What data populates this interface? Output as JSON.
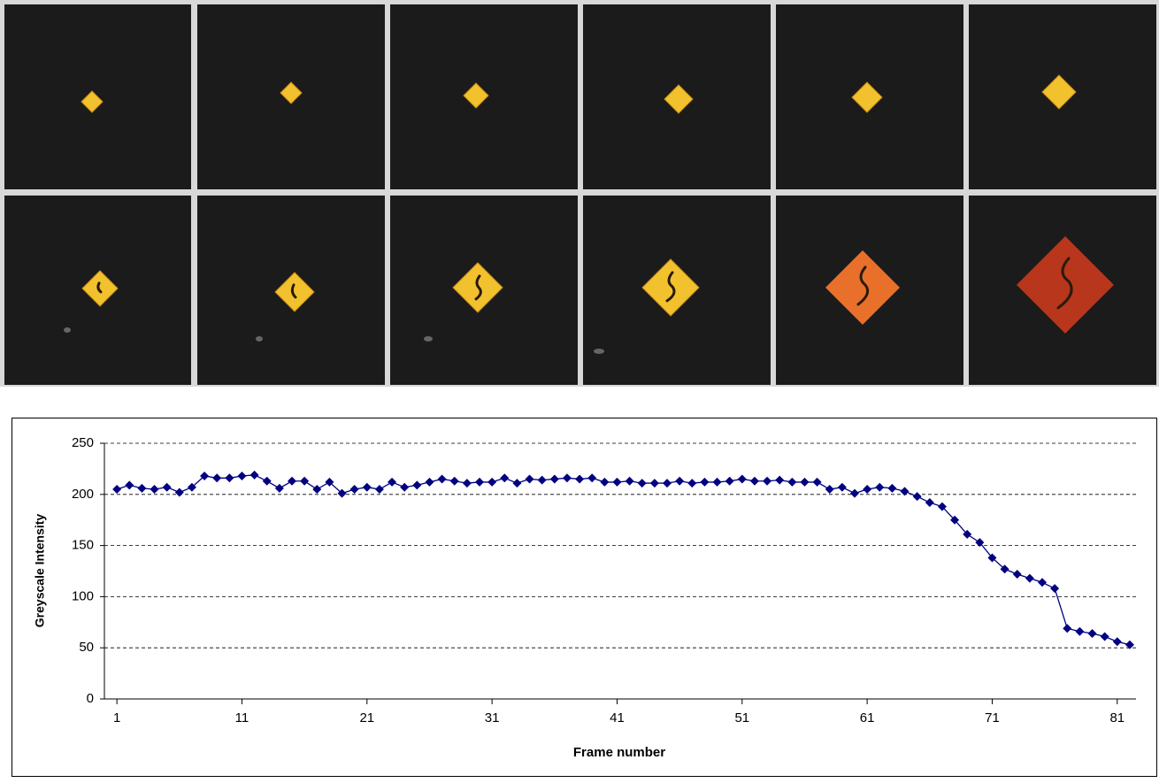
{
  "chart_data": {
    "type": "line",
    "x_label": "Frame number",
    "y_label": "Greyscale Intensity",
    "x": [
      1,
      2,
      3,
      4,
      5,
      6,
      7,
      8,
      9,
      10,
      11,
      12,
      13,
      14,
      15,
      16,
      17,
      18,
      19,
      20,
      21,
      22,
      23,
      24,
      25,
      26,
      27,
      28,
      29,
      30,
      31,
      32,
      33,
      34,
      35,
      36,
      37,
      38,
      39,
      40,
      41,
      42,
      43,
      44,
      45,
      46,
      47,
      48,
      49,
      50,
      51,
      52,
      53,
      54,
      55,
      56,
      57,
      58,
      59,
      60,
      61,
      62,
      63,
      64,
      65,
      66,
      67,
      68,
      69,
      70,
      71,
      72,
      73,
      74,
      75,
      76,
      77,
      78,
      79,
      80,
      81,
      82
    ],
    "series": [
      {
        "color": "#000080",
        "values": [
          205,
          209,
          206,
          205,
          207,
          202,
          207,
          218,
          216,
          216,
          218,
          219,
          213,
          206,
          213,
          213,
          205,
          212,
          201,
          205,
          207,
          205,
          212,
          207,
          209,
          212,
          215,
          213,
          211,
          212,
          212,
          216,
          211,
          215,
          214,
          215,
          216,
          215,
          216,
          212,
          212,
          213,
          211,
          211,
          211,
          213,
          211,
          212,
          212,
          213,
          215,
          213,
          213,
          214,
          212,
          212,
          212,
          205,
          207,
          201,
          205,
          207,
          206,
          203,
          198,
          192,
          188,
          175,
          161,
          153,
          138,
          127,
          122,
          118,
          114,
          108,
          69,
          66,
          64,
          61,
          56,
          53
        ]
      }
    ],
    "xlim": [
      0,
      82.5
    ],
    "xticks": [
      1,
      11,
      21,
      31,
      41,
      51,
      61,
      71,
      81
    ],
    "ylim": [
      0,
      250
    ],
    "yticks": [
      0,
      50,
      100,
      150,
      200,
      250
    ],
    "grid": true
  }
}
